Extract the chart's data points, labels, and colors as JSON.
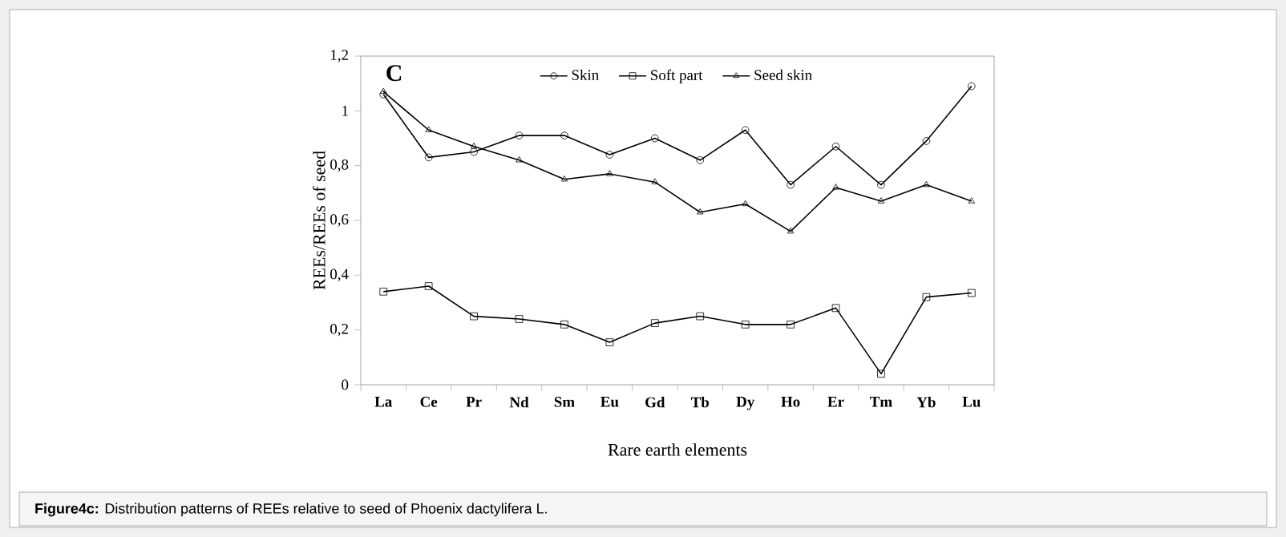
{
  "chart_data": {
    "type": "line",
    "xlabel": "Rare earth elements",
    "ylabel": "REEs/REEs  of seed",
    "categories": [
      "La",
      "Ce",
      "Pr",
      "Nd",
      "Sm",
      "Eu",
      "Gd",
      "Tb",
      "Dy",
      "Ho",
      "Er",
      "Tm",
      "Yb",
      "Lu"
    ],
    "series": [
      {
        "name": "Skin",
        "color": "#000000",
        "marker": "circle",
        "values": [
          1.06,
          0.83,
          0.85,
          0.91,
          0.91,
          0.84,
          0.9,
          0.82,
          0.93,
          0.73,
          0.87,
          0.73,
          0.89,
          1.09
        ]
      },
      {
        "name": "Soft part",
        "color": "#000000",
        "marker": "square",
        "values": [
          0.34,
          0.36,
          0.25,
          0.24,
          0.22,
          0.155,
          0.225,
          0.25,
          0.22,
          0.22,
          0.28,
          0.04,
          0.32,
          0.335
        ]
      },
      {
        "name": "Seed skin",
        "color": "#000000",
        "marker": "triangle",
        "values": [
          1.07,
          0.93,
          0.87,
          0.82,
          0.75,
          0.77,
          0.74,
          0.63,
          0.66,
          0.56,
          0.72,
          0.67,
          0.73,
          0.67
        ]
      }
    ],
    "ylim": [
      0,
      1.2
    ],
    "yticks": [
      0,
      {
        "value": 0.2,
        "label": "0,2"
      },
      {
        "value": 0.4,
        "label": "0,4"
      },
      {
        "value": 0.6,
        "label": "0,6"
      },
      {
        "value": 0.8,
        "label": "0,8"
      },
      1,
      {
        "value": 1.2,
        "label": "1,2"
      }
    ],
    "grid": false,
    "legend": "top",
    "line_style": "solid",
    "annotations": [
      "C",
      "**Figure4c:** Distribution patterns of REEs relative to seed of Phoenix dactylifera L."
    ]
  }
}
